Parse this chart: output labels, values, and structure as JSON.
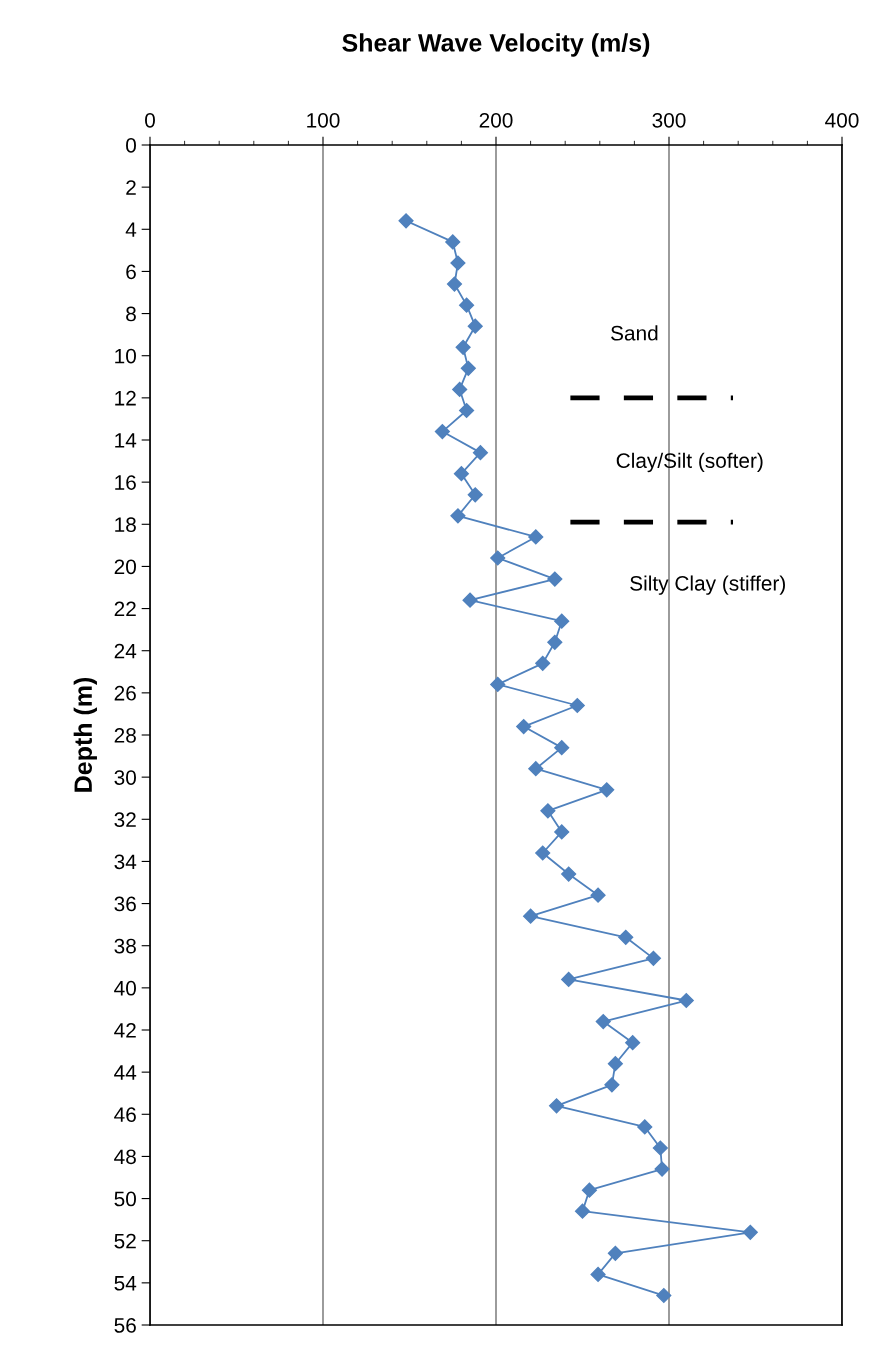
{
  "chart_data": {
    "type": "line",
    "title": "Shear Wave Velocity (m/s)",
    "ylabel": "Depth (m)",
    "xlim": [
      0,
      400
    ],
    "xticks": [
      0,
      100,
      200,
      300,
      400
    ],
    "ylim": [
      56,
      0
    ],
    "yticks": [
      0,
      2,
      4,
      6,
      8,
      10,
      12,
      14,
      16,
      18,
      20,
      22,
      24,
      26,
      28,
      30,
      32,
      34,
      36,
      38,
      40,
      42,
      44,
      46,
      48,
      50,
      52,
      54,
      56
    ],
    "grid": "x",
    "series": [
      {
        "color": "#4f81bd",
        "marker": "diamond",
        "line_style": "solid",
        "x": [
          148,
          175,
          178,
          176,
          183,
          188,
          181,
          184,
          179,
          183,
          169,
          191,
          180,
          188,
          178,
          223,
          201,
          234,
          185,
          238,
          234,
          227,
          201,
          247,
          216,
          238,
          223,
          264,
          230,
          238,
          227,
          242,
          259,
          220,
          275,
          291,
          242,
          310,
          262,
          279,
          269,
          267,
          235,
          286,
          295,
          296,
          254,
          250,
          347,
          269,
          259,
          297
        ],
        "values": [
          3.6,
          4.6,
          5.6,
          6.6,
          7.6,
          8.6,
          9.6,
          10.6,
          11.6,
          12.6,
          13.6,
          14.6,
          15.6,
          16.6,
          17.6,
          18.6,
          19.6,
          20.6,
          21.6,
          22.6,
          23.6,
          24.6,
          25.6,
          26.6,
          27.6,
          28.6,
          29.6,
          30.6,
          31.6,
          32.6,
          33.6,
          34.6,
          35.6,
          36.6,
          37.6,
          38.6,
          39.6,
          40.6,
          41.6,
          42.6,
          43.6,
          44.6,
          45.6,
          46.6,
          47.6,
          48.6,
          49.6,
          50.6,
          51.6,
          52.6,
          53.6,
          54.6
        ]
      },
      {
        "color": "#000000",
        "marker": "none",
        "line_style": "dashed",
        "x": [
          243,
          337
        ],
        "values": [
          12,
          12
        ]
      },
      {
        "color": "#000000",
        "marker": "none",
        "line_style": "dashed",
        "x": [
          243,
          337
        ],
        "values": [
          17.9,
          17.9
        ]
      }
    ],
    "annotations": [
      "Sand",
      "Clay/Silt (softer)",
      "Silty Clay (stiffer)"
    ]
  }
}
